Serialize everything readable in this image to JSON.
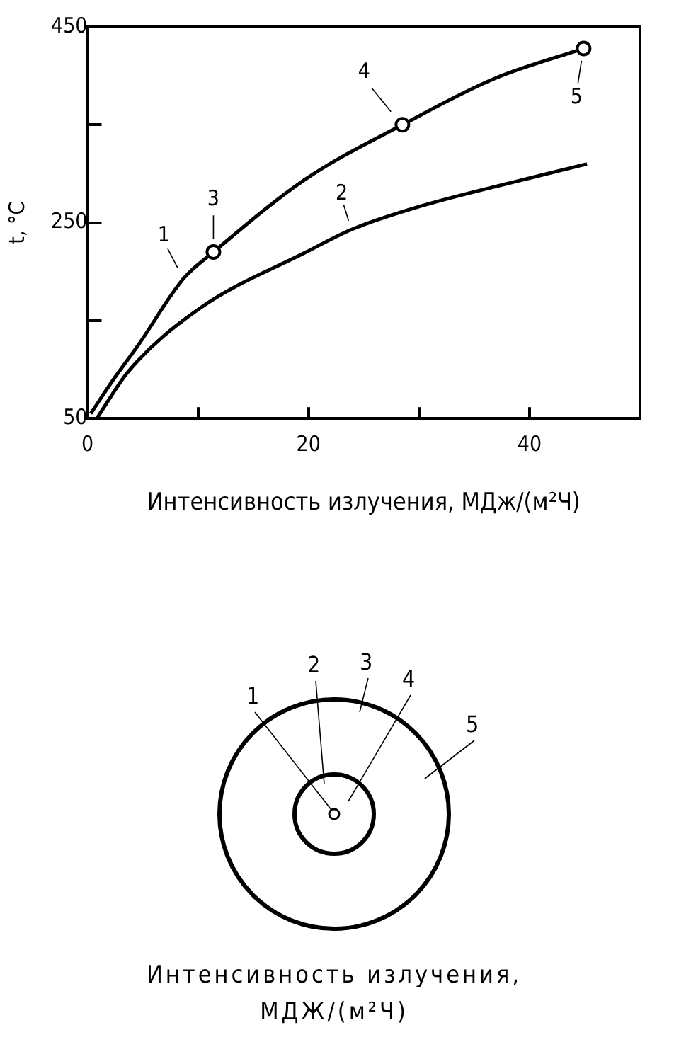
{
  "chart_data": [
    {
      "type": "line",
      "xlabel": "Интенсивность излучения, МДж/(м²Ч)",
      "ylabel": "t, °C",
      "xlim": [
        0,
        50
      ],
      "xticks": [
        0,
        {
          "value": 10,
          "label": null
        },
        20,
        {
          "value": 30,
          "label": null
        },
        40
      ],
      "ylim": [
        50,
        450
      ],
      "yticks": [
        50,
        {
          "value": 150,
          "label": null
        },
        250,
        {
          "value": 350,
          "label": null
        },
        450
      ],
      "grid": false,
      "legend": false,
      "line_style": "solid",
      "series": [
        {
          "color": "#000000",
          "x": [
            0.3,
            2.3,
            4.6,
            8.7,
            11.4,
            19.8,
            28.5,
            36.8,
            44.9
          ],
          "values": [
            55,
            89,
            125,
            193,
            220,
            295,
            350,
            397,
            428
          ]
        },
        {
          "color": "#000000",
          "x": [
            0.9,
            3.7,
            10.1,
            19.8,
            23.9,
            29.9,
            39.1,
            45.2
          ],
          "values": [
            51,
            98,
            162,
            220,
            243,
            266,
            293,
            310
          ]
        },
        {
          "type": "scatter",
          "marker": "circle",
          "color": "#000000",
          "x": [
            11.4,
            28.5,
            44.9
          ],
          "values": [
            220,
            350,
            428
          ]
        }
      ],
      "annotations": [
        {
          "text": "1",
          "x": 8.7,
          "y": 193
        },
        {
          "text": "2",
          "x": 23.9,
          "y": 243
        },
        {
          "text": "3",
          "x": 11.4,
          "y": 220
        },
        {
          "text": "4",
          "x": 28.5,
          "y": 350
        },
        {
          "text": "5",
          "x": 44.9,
          "y": 428
        }
      ]
    },
    {
      "type": "other",
      "xlabel": "Интенсивность излучения, МДЖ/(м²Ч)",
      "annotations": [
        "1",
        "2",
        "3",
        "4",
        "5"
      ]
    }
  ]
}
